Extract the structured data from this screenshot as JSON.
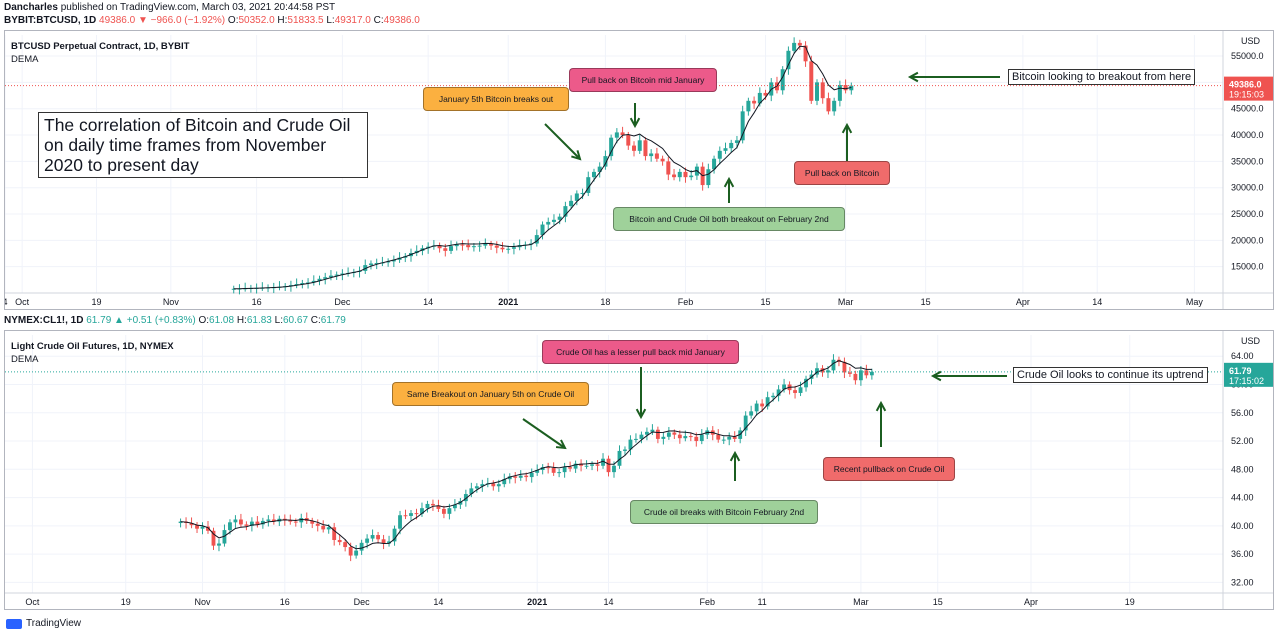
{
  "header": {
    "author": "Dancharles",
    "published_text": "published on TradingView.com, March 03, 2021 20:44:58 PST"
  },
  "btc_quote": {
    "symbol": "BYBIT:BTCUSD, 1D",
    "last": "49386.0",
    "change": "−966.0 (−1.92%)",
    "o": "50352.0",
    "h": "51833.5",
    "l": "49317.0",
    "c": "49386.0"
  },
  "oil_quote": {
    "symbol": "NYMEX:CL1!, 1D",
    "last": "61.79",
    "change": "+0.51 (+0.83%)",
    "o": "61.08",
    "h": "61.83",
    "l": "60.67",
    "c": "61.79"
  },
  "panel1": {
    "title": "BTCUSD Perpetual Contract, 1D, BYBIT",
    "indicator": "DEMA",
    "currency": "USD",
    "price_label": "49386.0",
    "time_label": "19:15:03",
    "main_text": "The correlation of Bitcoin and Crude Oil on daily time frames from November 2020 to present day",
    "annotations": {
      "jan5": "January 5th Bitcoin breaks out",
      "midjan": "Pull back on Bitcoin mid January",
      "feb2": "Bitcoin and Crude Oil both breakout on February 2nd",
      "pullback": "Pull back on Bitcoin",
      "breakout_note": "Bitcoin looking to breakout from here"
    }
  },
  "panel2": {
    "title": "Light Crude Oil Futures, 1D, NYMEX",
    "indicator": "DEMA",
    "currency": "USD",
    "price_label": "61.79",
    "time_label": "17:15:02",
    "annotations": {
      "jan5": "Same Breakout on January 5th on Crude Oil",
      "midjan": "Crude Oil has a lesser pull back mid January",
      "feb2": "Crude oil breaks with Bitcoin February 2nd",
      "pullback": "Recent pullback on Crude Oil",
      "uptrend_note": "Crude Oil looks to continue its uptrend"
    }
  },
  "footer": {
    "brand": "TradingView"
  },
  "colors": {
    "up": "#26a69a",
    "down": "#ef5350",
    "dema": "#131722",
    "grid": "#f0f3fa"
  },
  "chart_data": [
    {
      "type": "candlestick",
      "title": "BTCUSD Perpetual Contract, 1D, BYBIT",
      "y_ticks": [
        "15000.0",
        "20000.0",
        "25000.0",
        "30000.0",
        "35000.0",
        "40000.0",
        "45000.0",
        "50000.0",
        "55000.0"
      ],
      "ylim": [
        10000,
        59000
      ],
      "x_tick_labels": [
        "4",
        "Oct",
        "19",
        "Nov",
        "16",
        "Dec",
        "14",
        "2021",
        "18",
        "Feb",
        "15",
        "Mar",
        "15",
        "Apr",
        "14",
        "May"
      ],
      "x_tick_days": [
        -88,
        -85,
        -72,
        -59,
        -44,
        -29,
        -14,
        0,
        17,
        31,
        45,
        59,
        73,
        90,
        103,
        120
      ],
      "x_range_days": [
        -88,
        125
      ],
      "closes": [
        10800,
        10850,
        10900,
        10950,
        10980,
        11000,
        11050,
        11100,
        11200,
        11300,
        11500,
        11700,
        11900,
        12000,
        12300,
        12700,
        13000,
        13300,
        13500,
        13700,
        13800,
        14000,
        14200,
        15300,
        15600,
        15700,
        15800,
        16000,
        16300,
        16700,
        17000,
        17600,
        18000,
        18500,
        18800,
        19000,
        18500,
        18000,
        18900,
        19200,
        19100,
        18700,
        18900,
        19000,
        19300,
        19000,
        18600,
        18300,
        18400,
        18700,
        19100,
        19200,
        19400,
        21000,
        23000,
        23500,
        23900,
        24500,
        26500,
        27500,
        28900,
        29000,
        32000,
        33000,
        34000,
        36000,
        39500,
        40500,
        40000,
        38000,
        37000,
        39000,
        36000,
        36500,
        35500,
        35000,
        32500,
        32000,
        33000,
        32000,
        32300,
        34000,
        30500,
        33500,
        35500,
        37000,
        37500,
        38500,
        39000,
        44500,
        46500,
        46000,
        48000,
        47500,
        50000,
        48500,
        52500,
        56000,
        57500,
        57000,
        54000,
        46500,
        50000,
        47000,
        44500,
        46500,
        49500,
        48500,
        49386
      ],
      "last_day": 60
    },
    {
      "type": "candlestick",
      "title": "Light Crude Oil Futures, 1D, NYMEX",
      "y_ticks": [
        "32.00",
        "36.00",
        "40.00",
        "44.00",
        "48.00",
        "52.00",
        "56.00",
        "60.00",
        "64.00"
      ],
      "ylim": [
        30.5,
        67
      ],
      "x_tick_labels": [
        "Oct",
        "19",
        "Nov",
        "16",
        "Dec",
        "14",
        "2021",
        "14",
        "Feb",
        "11",
        "Mar",
        "15",
        "Apr",
        "19"
      ],
      "x_tick_days": [
        -92,
        -75,
        -61,
        -46,
        -32,
        -18,
        0,
        13,
        31,
        41,
        59,
        73,
        90,
        108
      ],
      "x_range_days": [
        -97,
        125
      ],
      "closes": [
        40.6,
        40.4,
        40.1,
        39.6,
        39.9,
        39.3,
        37.2,
        37.5,
        39.4,
        40.5,
        40.9,
        40.2,
        40.0,
        40.6,
        40.2,
        40.7,
        40.9,
        40.6,
        41.0,
        40.8,
        40.6,
        40.5,
        41.1,
        40.7,
        40.3,
        40.0,
        39.5,
        39.8,
        38.0,
        37.7,
        37.0,
        35.8,
        36.5,
        37.6,
        38.2,
        38.7,
        38.1,
        37.5,
        37.8,
        39.6,
        41.5,
        41.4,
        41.8,
        41.7,
        42.5,
        43.1,
        42.9,
        42.4,
        41.7,
        42.5,
        43.0,
        43.5,
        44.5,
        45.3,
        45.6,
        45.9,
        46.0,
        45.6,
        45.9,
        46.6,
        47.0,
        46.8,
        47.1,
        46.9,
        47.5,
        47.9,
        48.3,
        48.2,
        47.5,
        47.6,
        48.3,
        48.1,
        48.8,
        48.5,
        48.5,
        48.7,
        48.5,
        49.5,
        47.6,
        48.5,
        50.6,
        50.8,
        52.2,
        52.3,
        52.9,
        53.3,
        53.6,
        52.3,
        52.6,
        53.2,
        52.9,
        52.4,
        52.7,
        52.6,
        52.0,
        52.9,
        53.5,
        52.9,
        52.2,
        52.2,
        52.6,
        52.3,
        53.5,
        55.6,
        56.2,
        57.3,
        56.9,
        58.2,
        58.4,
        59.3,
        60.0,
        59.2,
        58.8,
        59.6,
        60.8,
        61.4,
        62.3,
        61.7,
        62.0,
        63.5,
        63.2,
        61.7,
        61.5,
        60.6,
        62.0,
        61.3,
        61.79
      ],
      "last_day": 61
    }
  ]
}
